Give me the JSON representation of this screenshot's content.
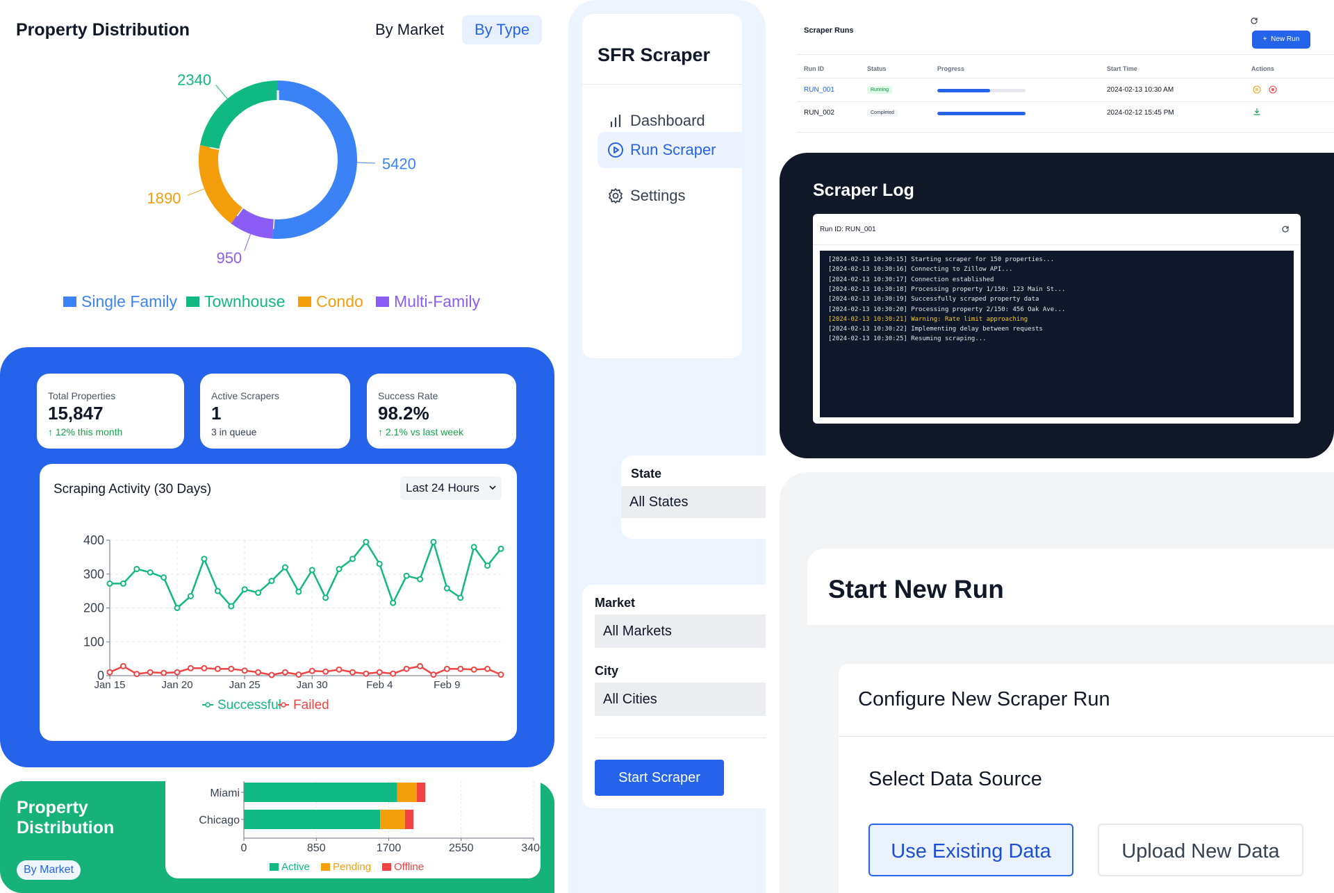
{
  "donut_panel": {
    "title": "Property Distribution",
    "toggle": {
      "market_label": "By Market",
      "type_label": "By Type"
    },
    "chart_data": {
      "type": "pie",
      "title": "",
      "categories": [
        "Single Family",
        "Townhouse",
        "Condo",
        "Multi-Family"
      ],
      "values": [
        5420,
        2340,
        1890,
        950
      ],
      "colors": [
        "#3b82f6",
        "#10b981",
        "#f59e0b",
        "#8b5cf6"
      ],
      "legend_position": "bottom"
    }
  },
  "stats": [
    {
      "label": "Total Properties",
      "value": "15,847",
      "sub": "↑ 12% this month",
      "sub_color": "#16a34a"
    },
    {
      "label": "Active Scrapers",
      "value": "1",
      "sub": "3 in queue",
      "sub_color": "#374151"
    },
    {
      "label": "Success Rate",
      "value": "98.2%",
      "sub": "↑ 2.1% vs last week",
      "sub_color": "#16a34a"
    }
  ],
  "activity": {
    "title": "Scraping Activity (30 Days)",
    "range_select": "Last 24 Hours",
    "chart_data": {
      "type": "line",
      "title": "",
      "x_tick_labels": [
        "Jan 15",
        "Jan 20",
        "Jan 25",
        "Jan 30",
        "Feb 4",
        "Feb 9"
      ],
      "x": [
        "Jan 15",
        "Jan 16",
        "Jan 17",
        "Jan 18",
        "Jan 19",
        "Jan 20",
        "Jan 21",
        "Jan 22",
        "Jan 23",
        "Jan 24",
        "Jan 25",
        "Jan 26",
        "Jan 27",
        "Jan 28",
        "Jan 29",
        "Jan 30",
        "Jan 31",
        "Feb 1",
        "Feb 2",
        "Feb 3",
        "Feb 4",
        "Feb 5",
        "Feb 6",
        "Feb 7",
        "Feb 8",
        "Feb 9",
        "Feb 10",
        "Feb 11",
        "Feb 12",
        "Feb 13"
      ],
      "ylim": [
        0,
        400
      ],
      "y_ticks": [
        0,
        100,
        200,
        300,
        400
      ],
      "grid": true,
      "legend_position": "bottom",
      "series": [
        {
          "name": "Successful",
          "color": "#10b981",
          "values": [
            272,
            272,
            315,
            305,
            290,
            200,
            235,
            345,
            250,
            205,
            255,
            245,
            280,
            320,
            248,
            312,
            230,
            315,
            345,
            395,
            330,
            215,
            295,
            285,
            395,
            258,
            230,
            380,
            325,
            375
          ]
        },
        {
          "name": "Failed",
          "color": "#ef4444",
          "values": [
            10,
            28,
            5,
            10,
            8,
            10,
            22,
            22,
            20,
            20,
            15,
            10,
            2,
            10,
            3,
            14,
            12,
            18,
            10,
            6,
            10,
            6,
            20,
            28,
            3,
            20,
            20,
            18,
            20,
            3
          ]
        }
      ]
    }
  },
  "bar_panel": {
    "title_line1": "Property",
    "title_line2": "Distribution",
    "pill": "By Market",
    "chart_data": {
      "type": "bar",
      "orientation": "horizontal",
      "stacked": true,
      "categories": [
        "Miami",
        "Chicago"
      ],
      "xlim": [
        0,
        3400
      ],
      "x_ticks": [
        0,
        850,
        1700,
        2550,
        3400
      ],
      "legend_position": "bottom",
      "series": [
        {
          "name": "Active",
          "color": "#10b981",
          "values": [
            1800,
            1600
          ]
        },
        {
          "name": "Pending",
          "color": "#f59e0b",
          "values": [
            230,
            290
          ]
        },
        {
          "name": "Offline",
          "color": "#ef4444",
          "values": [
            100,
            100
          ]
        }
      ]
    }
  },
  "sidebar": {
    "brand": "SFR Scraper",
    "items": [
      {
        "label": "Dashboard",
        "icon": "bar-chart-icon",
        "active": false
      },
      {
        "label": "Run Scraper",
        "icon": "play-circle-icon",
        "active": true
      },
      {
        "label": "Settings",
        "icon": "gear-icon",
        "active": false
      }
    ]
  },
  "filters": {
    "state_label": "State",
    "state_value": "All States",
    "market_label": "Market",
    "market_value": "All Markets",
    "city_label": "City",
    "city_value": "All Cities",
    "start_button": "Start Scraper"
  },
  "runs": {
    "title": "Scraper Runs",
    "new_run_label": "New Run",
    "headers": [
      "Run ID",
      "Status",
      "Progress",
      "Start Time",
      "Actions"
    ],
    "rows": [
      {
        "id": "RUN_001",
        "status": "Running",
        "progress": 0.6,
        "start": "2024-02-13 10:30 AM",
        "actions": [
          "pause-icon",
          "stop-icon"
        ]
      },
      {
        "id": "RUN_002",
        "status": "Completed",
        "progress": 1.0,
        "start": "2024-02-12 15:45 PM",
        "actions": [
          "download-icon"
        ]
      }
    ]
  },
  "log": {
    "title": "Scraper Log",
    "run_id": "Run ID: RUN_001",
    "lines": [
      {
        "text": "[2024-02-13 10:30:15] Starting scraper for 150 properties...",
        "warn": false
      },
      {
        "text": "[2024-02-13 10:30:16] Connecting to Zillow API...",
        "warn": false
      },
      {
        "text": "[2024-02-13 10:30:17] Connection established",
        "warn": false
      },
      {
        "text": "[2024-02-13 10:30:18] Processing property 1/150: 123 Main St...",
        "warn": false
      },
      {
        "text": "[2024-02-13 10:30:19] Successfully scraped property data",
        "warn": false
      },
      {
        "text": "[2024-02-13 10:30:20] Processing property 2/150: 456 Oak Ave...",
        "warn": false
      },
      {
        "text": "[2024-02-13 10:30:21] Warning: Rate limit approaching",
        "warn": true
      },
      {
        "text": "[2024-02-13 10:30:22] Implementing delay between requests",
        "warn": false
      },
      {
        "text": "[2024-02-13 10:30:25] Resuming scraping...",
        "warn": false
      }
    ]
  },
  "new_run": {
    "title": "Start New Run",
    "config_title": "Configure New Scraper Run",
    "data_source_label": "Select Data Source",
    "option_existing": "Use Existing Data",
    "option_upload": "Upload New Data"
  }
}
